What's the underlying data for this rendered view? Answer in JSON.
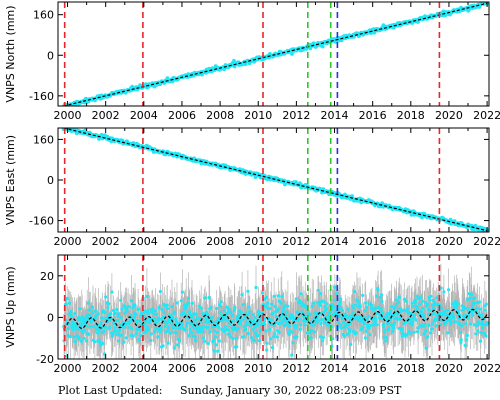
{
  "footer": {
    "label": "Plot Last Updated:",
    "timestamp": "Sunday, January 30, 2022 08:23:09 PST"
  },
  "colors": {
    "data": "#22e6f5",
    "errorbar": "#b4b4b4",
    "model": "#000000",
    "break_red": "#e8262b",
    "break_green": "#2bc62b",
    "break_blue": "#2433e6"
  },
  "chart_data": [
    {
      "type": "scatter",
      "ylabel": "VNPS North (mm)",
      "xlim": [
        1999.5,
        2022.1
      ],
      "ylim": [
        -200,
        210
      ],
      "yticks": [
        -160,
        0,
        160
      ],
      "xticks": [
        2000,
        2002,
        2004,
        2006,
        2008,
        2010,
        2012,
        2014,
        2016,
        2018,
        2020,
        2022
      ],
      "grid": false,
      "trend": {
        "x": [
          1999.8,
          2022.0
        ],
        "y": [
          -200,
          205
        ]
      },
      "noise_mm": 4,
      "error_mm": 3
    },
    {
      "type": "scatter",
      "ylabel": "VNPS East (mm)",
      "xlim": [
        1999.5,
        2022.1
      ],
      "ylim": [
        -205,
        205
      ],
      "yticks": [
        -160,
        0,
        160
      ],
      "xticks": [
        2000,
        2002,
        2004,
        2006,
        2008,
        2010,
        2012,
        2014,
        2016,
        2018,
        2020,
        2022
      ],
      "grid": false,
      "trend": {
        "x": [
          1999.8,
          2022.0
        ],
        "y": [
          205,
          -200
        ]
      },
      "noise_mm": 4,
      "error_mm": 3
    },
    {
      "type": "scatter",
      "ylabel": "VNPS Up (mm)",
      "xlim": [
        1999.5,
        2022.1
      ],
      "ylim": [
        -20,
        30
      ],
      "yticks": [
        -20,
        0,
        20
      ],
      "xticks": [
        2000,
        2002,
        2004,
        2006,
        2008,
        2010,
        2012,
        2014,
        2016,
        2018,
        2020,
        2022
      ],
      "grid": false,
      "trend": {
        "x": [
          1999.8,
          2022.0
        ],
        "y": [
          -3,
          1.5
        ]
      },
      "seasonal_amplitude_mm": 2.5,
      "noise_mm": 5,
      "error_mm": 9
    }
  ],
  "breaks": [
    {
      "year": 1999.85,
      "color": "red"
    },
    {
      "year": 2003.95,
      "color": "red"
    },
    {
      "year": 2010.25,
      "color": "red"
    },
    {
      "year": 2012.6,
      "color": "green"
    },
    {
      "year": 2013.8,
      "color": "green"
    },
    {
      "year": 2014.15,
      "color": "blue"
    },
    {
      "year": 2019.5,
      "color": "red"
    }
  ]
}
